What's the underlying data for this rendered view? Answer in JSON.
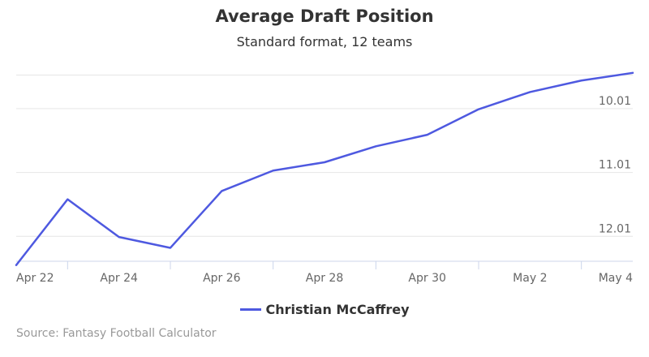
{
  "chart_data": {
    "type": "line",
    "title": "Average Draft Position",
    "subtitle": "Standard format, 12 teams",
    "xlabel": "",
    "ylabel": "",
    "x": [
      "Apr 22",
      "Apr 23",
      "Apr 24",
      "Apr 25",
      "Apr 26",
      "Apr 27",
      "Apr 28",
      "Apr 29",
      "Apr 30",
      "May 1",
      "May 2",
      "May 3",
      "May 4"
    ],
    "x_tick_labels": [
      "Apr 22",
      "Apr 24",
      "Apr 26",
      "Apr 28",
      "Apr 30",
      "May 2",
      "May 4"
    ],
    "y_tick_labels": [
      "10.01",
      "11.01",
      "12.01"
    ],
    "y_tick_values": [
      10.01,
      11.01,
      12.01
    ],
    "y_reversed": true,
    "ylim": [
      9.3,
      12.4
    ],
    "series": [
      {
        "name": "Christian McCaffrey",
        "color": "#4e59e0",
        "values": [
          12.46,
          11.43,
          12.02,
          12.19,
          11.3,
          10.98,
          10.85,
          10.6,
          10.42,
          10.02,
          9.75,
          9.57,
          9.45
        ]
      }
    ],
    "grid": true,
    "legend_position": "bottom"
  },
  "credit": "Source: Fantasy Football Calculator"
}
